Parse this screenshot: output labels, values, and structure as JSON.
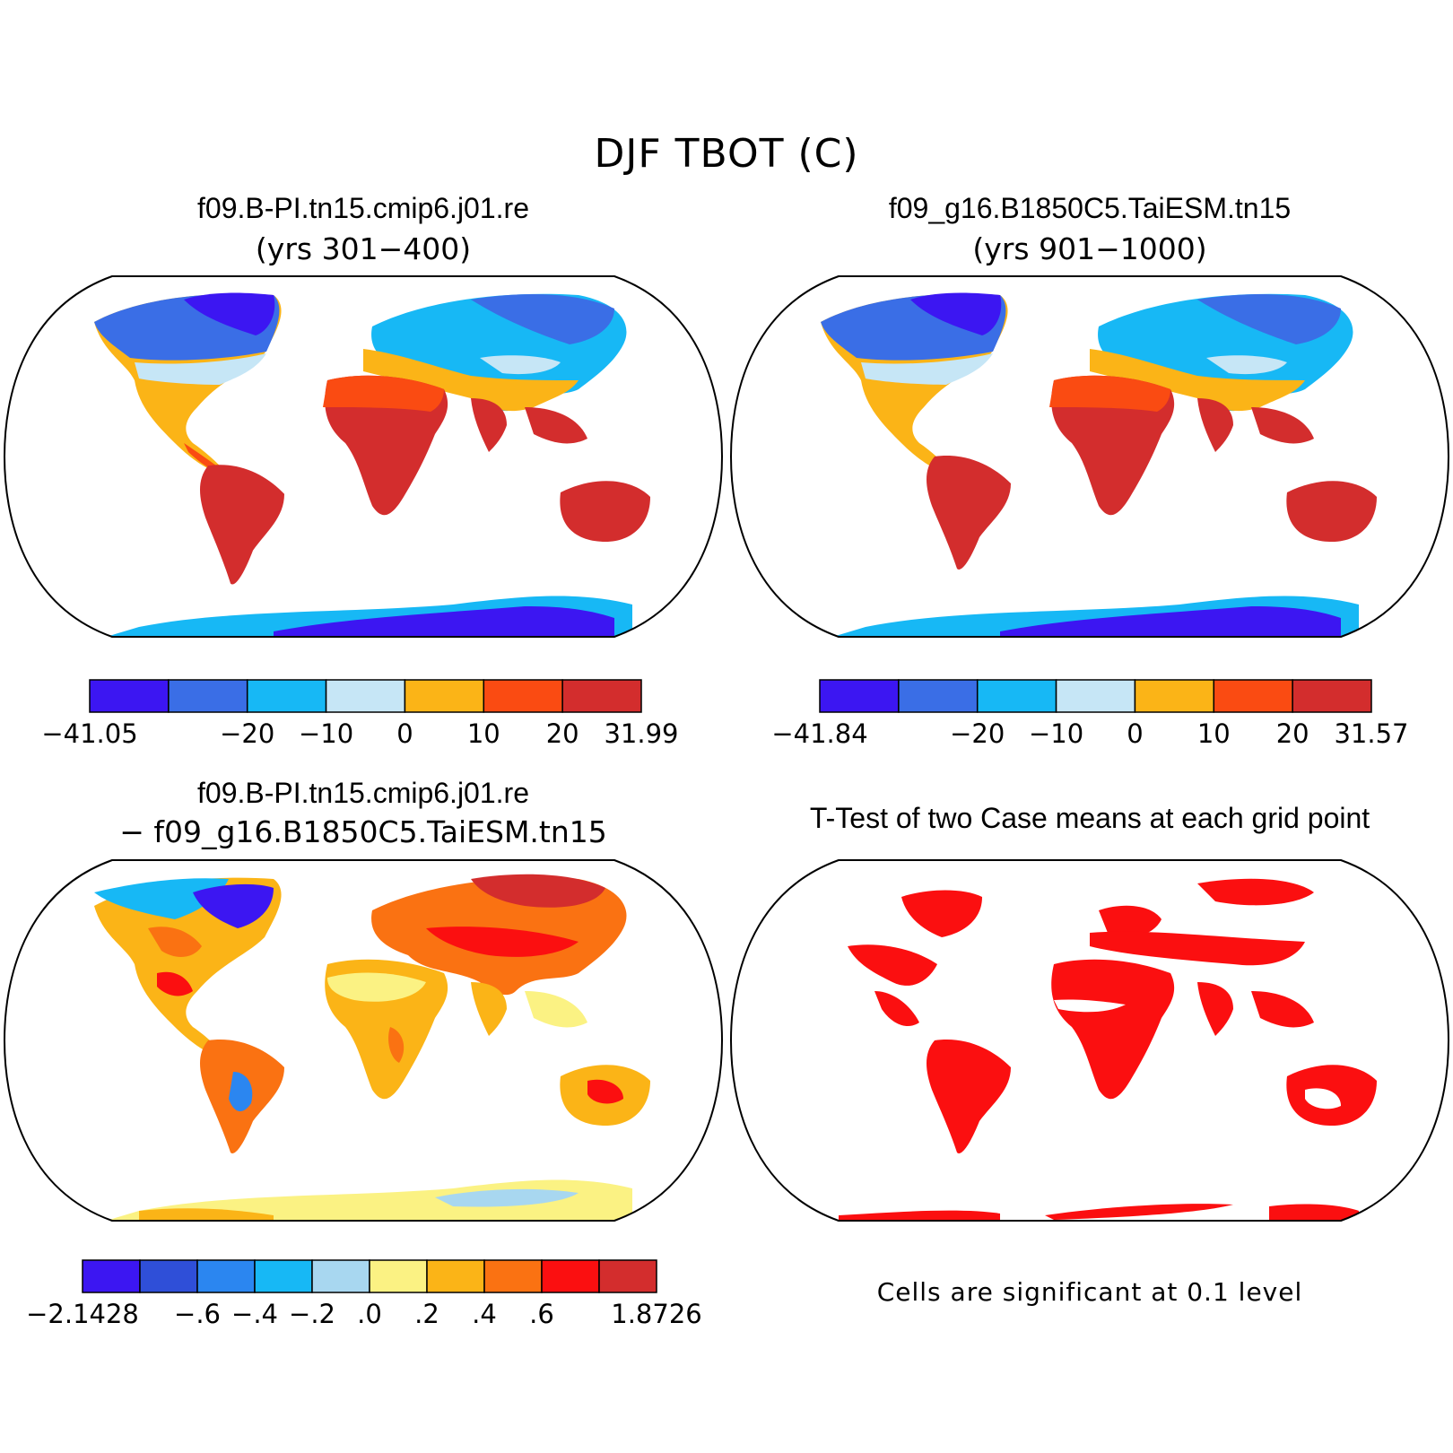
{
  "title": "DJF TBOT (C)",
  "panels": [
    {
      "title": "f09.B-PI.tn15.cmip6.j01.re",
      "subtitle": "(yrs 301−400)",
      "colorbar": {
        "colors": [
          "#3c16f2",
          "#3a6ee6",
          "#17b8f5",
          "#c6e6f6",
          "#fbb417",
          "#fa4b12",
          "#d32d2d"
        ],
        "labels": [
          "−41.05",
          "",
          "−20",
          "−10",
          "0",
          "10",
          "20",
          "31.99"
        ]
      }
    },
    {
      "title": "f09_g16.B1850C5.TaiESM.tn15",
      "subtitle": "(yrs 901−1000)",
      "colorbar": {
        "colors": [
          "#3c16f2",
          "#3a6ee6",
          "#17b8f5",
          "#c6e6f6",
          "#fbb417",
          "#fa4b12",
          "#d32d2d"
        ],
        "labels": [
          "−41.84",
          "",
          "−20",
          "−10",
          "0",
          "10",
          "20",
          "31.57"
        ]
      }
    },
    {
      "title": "f09.B-PI.tn15.cmip6.j01.re",
      "subtitle": "− f09_g16.B1850C5.TaiESM.tn15",
      "colorbar": {
        "colors": [
          "#3c16f2",
          "#2f4fd8",
          "#2b86f0",
          "#17b8f5",
          "#a8d7f0",
          "#fbf283",
          "#fbb417",
          "#fa7212",
          "#fb0f10",
          "#d32d2d"
        ],
        "labels": [
          "−2.1428",
          "",
          "−.6",
          "−.4",
          "−.2",
          ".0",
          ".2",
          ".4",
          ".6",
          "",
          "1.8726"
        ]
      }
    },
    {
      "title": "T-Test of two Case means at each grid point",
      "note": "Cells are significant at 0.1 level"
    }
  ]
}
